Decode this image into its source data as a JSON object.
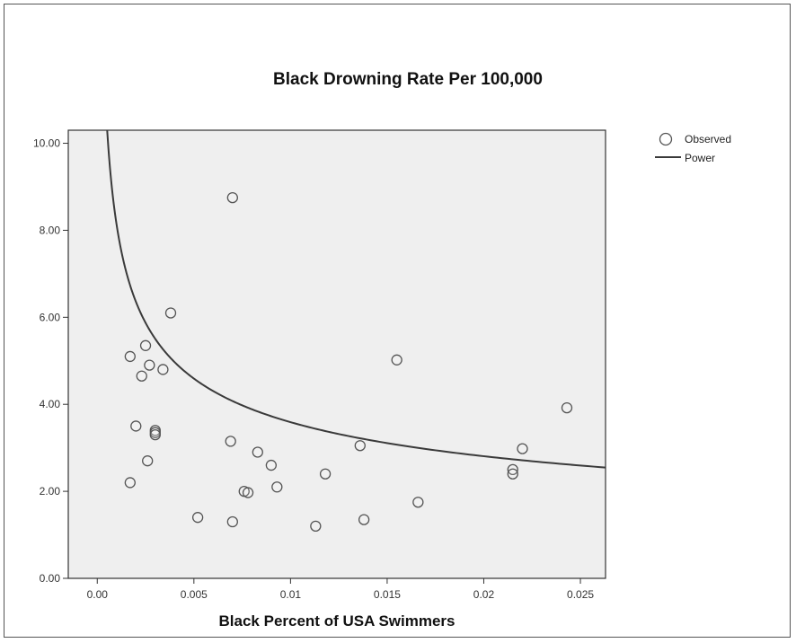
{
  "chart_data": {
    "type": "scatter",
    "title": "Black Drowning Rate Per 100,000",
    "xlabel": "Black Percent of USA Swimmers",
    "ylabel": "",
    "xlim": [
      -0.0015,
      0.0263
    ],
    "ylim": [
      0,
      10.3
    ],
    "x_ticks": [
      0.0,
      0.005,
      0.01,
      0.015,
      0.02,
      0.025
    ],
    "x_tick_labels": [
      "0.00",
      "0.005",
      "0.01",
      "0.015",
      "0.02",
      "0.025"
    ],
    "y_ticks": [
      0,
      2,
      4,
      6,
      8,
      10
    ],
    "y_tick_labels": [
      "0.00",
      "2.00",
      "4.00",
      "6.00",
      "8.00",
      "10.00"
    ],
    "grid": false,
    "legend_position": "right-top, outside plot",
    "series": [
      {
        "name": "Observed",
        "kind": "scatter",
        "marker": "open-circle",
        "points": [
          [
            0.0017,
            5.1
          ],
          [
            0.0017,
            2.2
          ],
          [
            0.002,
            3.5
          ],
          [
            0.0023,
            4.65
          ],
          [
            0.0025,
            5.35
          ],
          [
            0.0026,
            2.7
          ],
          [
            0.0027,
            4.9
          ],
          [
            0.003,
            3.4
          ],
          [
            0.003,
            3.35
          ],
          [
            0.003,
            3.3
          ],
          [
            0.0034,
            4.8
          ],
          [
            0.0038,
            6.1
          ],
          [
            0.0052,
            1.4
          ],
          [
            0.0069,
            3.15
          ],
          [
            0.007,
            8.75
          ],
          [
            0.007,
            1.3
          ],
          [
            0.0076,
            2.0
          ],
          [
            0.0078,
            1.97
          ],
          [
            0.0083,
            2.9
          ],
          [
            0.009,
            2.6
          ],
          [
            0.0093,
            2.1
          ],
          [
            0.0113,
            1.2
          ],
          [
            0.0118,
            2.4
          ],
          [
            0.0136,
            3.05
          ],
          [
            0.0138,
            1.35
          ],
          [
            0.0155,
            5.02
          ],
          [
            0.0166,
            1.75
          ],
          [
            0.0215,
            2.5
          ],
          [
            0.0215,
            2.4
          ],
          [
            0.022,
            2.98
          ],
          [
            0.0243,
            3.92
          ]
        ]
      },
      {
        "name": "Power",
        "kind": "fit-line",
        "model": "y = a * x^b",
        "a": 0.7,
        "b": -0.355
      }
    ]
  },
  "colors": {
    "plot_background": "#efefef",
    "axis": "#333333",
    "marker_stroke": "#555555",
    "fit_line": "#3a3a3a"
  }
}
